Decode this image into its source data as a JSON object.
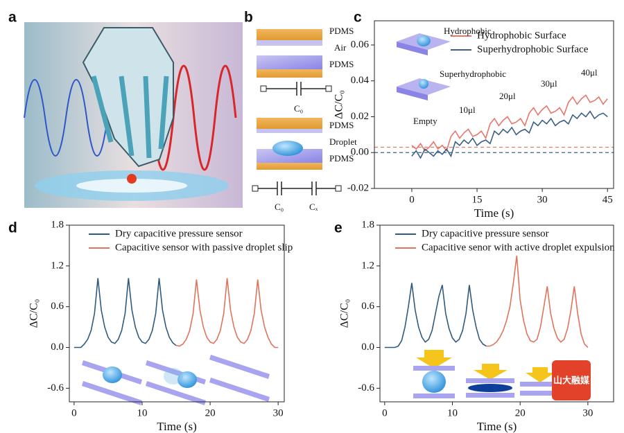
{
  "figure": {
    "panel_labels": [
      "a",
      "b",
      "c",
      "d",
      "e"
    ],
    "diagram_b": {
      "top": [
        "PDMS",
        "Air",
        "PDMS"
      ],
      "top_capacitor": "C₀",
      "bottom": [
        "PDMS",
        "Droplet",
        "PDMS"
      ],
      "bottom_capacitors": [
        "C₀",
        "Cₓ"
      ]
    },
    "watermark": "山大融媒"
  },
  "chart_data": [
    {
      "type": "line",
      "xlabel": "Time (s)",
      "ylabel": "ΔC/C₀",
      "xlim": [
        -8.6,
        46.4
      ],
      "ylim": [
        -0.02,
        0.0735
      ],
      "xticks": [
        0,
        15,
        30,
        45
      ],
      "yticks": [
        -0.02,
        {
          "value": 0,
          "label": "0.00"
        },
        0.02,
        0.04,
        0.06
      ],
      "reference_lines": [
        {
          "value": 0.003,
          "color": "#e8756a"
        },
        {
          "value": 0,
          "color": "#3b5f86"
        }
      ],
      "annotations": [
        "Hydrophobic",
        "Superhydrophobic",
        "Empty",
        "10μl",
        "20μl",
        "30μl",
        "40μl"
      ],
      "series": [
        {
          "name": "Hydrophobic Surface",
          "color": "#e8756a",
          "x": [
            0,
            1,
            2,
            3,
            4,
            5,
            6,
            7,
            8,
            9,
            10,
            11,
            12,
            13,
            14,
            15,
            16,
            17,
            18,
            19,
            20,
            21,
            22,
            23,
            24,
            25,
            26,
            27,
            28,
            29,
            30,
            31,
            32,
            33,
            34,
            35,
            36,
            37,
            38,
            39,
            40,
            41,
            42,
            43,
            44,
            45
          ],
          "values": [
            0.004,
            0.002,
            0.005,
            0.001,
            0.003,
            0.006,
            0.002,
            0.004,
            0.001,
            0.009,
            0.012,
            0.008,
            0.011,
            0.013,
            0.009,
            0.01,
            0.012,
            0.008,
            0.016,
            0.019,
            0.015,
            0.018,
            0.02,
            0.016,
            0.017,
            0.019,
            0.015,
            0.022,
            0.025,
            0.021,
            0.024,
            0.026,
            0.022,
            0.023,
            0.025,
            0.021,
            0.028,
            0.031,
            0.027,
            0.03,
            0.032,
            0.028,
            0.029,
            0.031,
            0.027,
            0.03
          ]
        },
        {
          "name": "Superhydrophobic Surface",
          "color": "#3b5f86",
          "x": [
            0,
            1,
            2,
            3,
            4,
            5,
            6,
            7,
            8,
            9,
            10,
            11,
            12,
            13,
            14,
            15,
            16,
            17,
            18,
            19,
            20,
            21,
            22,
            23,
            24,
            25,
            26,
            27,
            28,
            29,
            30,
            31,
            32,
            33,
            34,
            35,
            36,
            37,
            38,
            39,
            40,
            41,
            42,
            43,
            44,
            45
          ],
          "values": [
            -0.002,
            0.001,
            -0.003,
            0.002,
            0.0,
            -0.002,
            0.001,
            -0.001,
            0.002,
            -0.002,
            0.006,
            0.004,
            0.007,
            0.005,
            0.008,
            0.004,
            0.006,
            0.007,
            0.005,
            0.012,
            0.01,
            0.013,
            0.011,
            0.014,
            0.01,
            0.012,
            0.013,
            0.011,
            0.017,
            0.015,
            0.018,
            0.016,
            0.019,
            0.015,
            0.017,
            0.018,
            0.016,
            0.021,
            0.019,
            0.022,
            0.02,
            0.023,
            0.019,
            0.021,
            0.022,
            0.02
          ]
        }
      ]
    },
    {
      "type": "line",
      "xlabel": "Time (s)",
      "ylabel": "ΔC/C₀",
      "xlim": [
        -0.7,
        30.9
      ],
      "ylim": [
        -0.8,
        1.8
      ],
      "xticks": [
        0,
        10,
        20,
        30
      ],
      "yticks": [
        -0.6,
        {
          "value": 0,
          "label": "0.0"
        },
        0.6,
        1.2,
        1.8
      ],
      "series": [
        {
          "name": "Dry capacitive pressure sensor",
          "color": "#2e5a7e",
          "x": [
            0,
            0.5,
            1,
            1.5,
            2,
            2.5,
            3,
            3.5,
            4,
            4.5,
            5,
            5.5,
            6,
            6.5,
            7,
            7.5,
            8,
            8.5,
            9,
            9.5,
            10,
            10.5,
            11,
            11.5,
            12,
            12.5,
            13,
            13.5,
            14,
            14.5,
            15
          ],
          "values": [
            0,
            0,
            0,
            0.05,
            0.12,
            0.25,
            0.5,
            1.02,
            0.55,
            0.3,
            0.15,
            0.08,
            0.06,
            0.12,
            0.25,
            0.5,
            1.02,
            0.55,
            0.3,
            0.15,
            0.08,
            0.06,
            0.12,
            0.25,
            0.5,
            1.02,
            0.55,
            0.3,
            0.15,
            0.07,
            0.03
          ]
        },
        {
          "name": "Capacitive sensor with passive droplet slip",
          "color": "#e0735a",
          "x": [
            15,
            15.5,
            16,
            16.5,
            17,
            17.5,
            18,
            18.5,
            19,
            19.5,
            20,
            20.5,
            21,
            21.5,
            22,
            22.5,
            23,
            23.5,
            24,
            24.5,
            25,
            25.5,
            26,
            26.5,
            27,
            27.5,
            28,
            28.5,
            29,
            29.5,
            30
          ],
          "values": [
            0.03,
            0.02,
            0.05,
            0.12,
            0.25,
            0.5,
            1.0,
            0.55,
            0.3,
            0.15,
            0.08,
            0.06,
            0.12,
            0.25,
            0.5,
            1.02,
            0.55,
            0.3,
            0.15,
            0.08,
            0.06,
            0.12,
            0.25,
            0.5,
            1.0,
            0.55,
            0.3,
            0.15,
            0.05,
            0.0,
            0.0
          ]
        }
      ]
    },
    {
      "type": "line",
      "xlabel": "Time (s)",
      "ylabel": "ΔC/C₀",
      "xlim": [
        -0.7,
        33.8
      ],
      "ylim": [
        -0.8,
        1.8
      ],
      "xticks": [
        0,
        10,
        20,
        30
      ],
      "yticks": [
        -0.6,
        {
          "value": 0,
          "label": "0.0"
        },
        0.6,
        1.2,
        1.8
      ],
      "series": [
        {
          "name": "Dry capacitive pressure sensor",
          "color": "#2e5a7e",
          "x": [
            0,
            0.5,
            1,
            1.5,
            2,
            2.5,
            3,
            3.5,
            4,
            4.5,
            5,
            5.5,
            6,
            6.5,
            7,
            7.5,
            8,
            8.5,
            9,
            9.5,
            10,
            10.5,
            11,
            11.5,
            12,
            12.5,
            13,
            13.5,
            14,
            14.5,
            15
          ],
          "values": [
            0,
            0,
            0,
            0,
            0.02,
            0.1,
            0.3,
            0.6,
            0.95,
            0.55,
            0.3,
            0.15,
            0.08,
            0.12,
            0.25,
            0.5,
            0.75,
            0.92,
            0.5,
            0.28,
            0.14,
            0.08,
            0.12,
            0.25,
            0.5,
            0.92,
            0.55,
            0.3,
            0.12,
            0.05,
            0.02
          ]
        },
        {
          "name": "Capacitive senor with active droplet expulsion",
          "color": "#e0735a",
          "x": [
            15,
            15.5,
            16,
            16.5,
            17,
            17.5,
            18,
            18.5,
            19,
            19.5,
            20,
            20.5,
            21,
            21.5,
            22,
            22.5,
            23,
            23.5,
            24,
            24.5,
            25,
            25.5,
            26,
            26.5,
            27,
            27.5,
            28,
            28.5,
            29,
            29.5,
            30
          ],
          "values": [
            0.02,
            0.02,
            0.04,
            0.08,
            0.15,
            0.25,
            0.4,
            0.6,
            0.95,
            1.35,
            0.7,
            0.4,
            0.2,
            0.1,
            0.08,
            0.12,
            0.3,
            0.6,
            0.9,
            0.5,
            0.28,
            0.14,
            0.08,
            0.12,
            0.28,
            0.55,
            0.9,
            0.5,
            0.2,
            0.05,
            0.0
          ]
        }
      ]
    }
  ]
}
